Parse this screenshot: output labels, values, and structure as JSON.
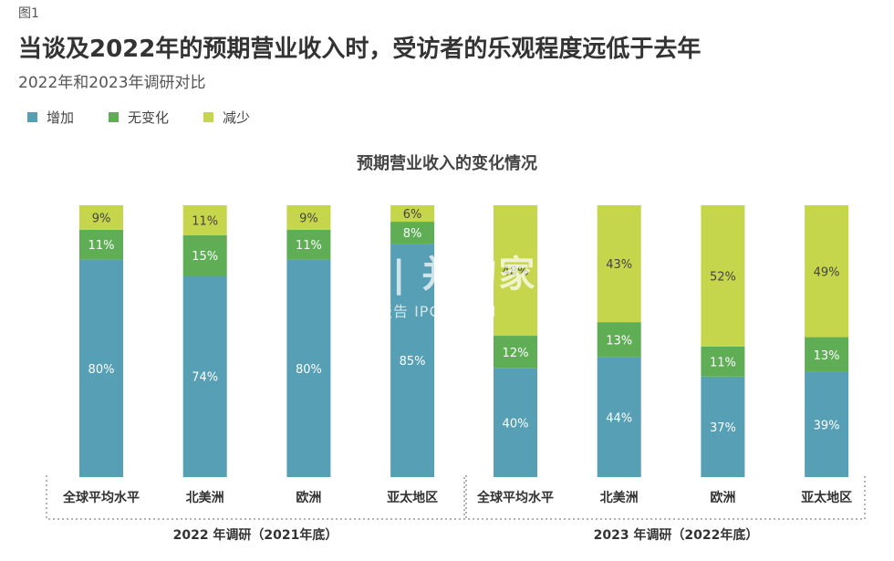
{
  "figure_label": "图1",
  "title": "当谈及2022年的预期营业收入时，受访者的乐观程度远低于去年",
  "subtitle": "2022年和2023年调研对比",
  "watermark": {
    "brand": "|||| 并购家",
    "sub": "行业报告 IPOIPO.CN"
  },
  "colors": {
    "increase": "#569fb5",
    "no_change": "#5fae56",
    "decrease": "#c5d64c"
  },
  "chart_data": {
    "type": "bar",
    "stacked": true,
    "percent": true,
    "title": "预期营业收入的变化情况",
    "ylim": [
      0,
      100
    ],
    "grid": false,
    "legend_position": "top-left",
    "legend": [
      "增加",
      "无变化",
      "减少"
    ],
    "groups": [
      {
        "label": "2022 年调研（2021年底）",
        "categories": [
          "全球平均水平",
          "北美洲",
          "欧洲",
          "亚太地区"
        ],
        "series": [
          {
            "name": "增加",
            "values": [
              80,
              74,
              80,
              85
            ]
          },
          {
            "name": "无变化",
            "values": [
              11,
              15,
              11,
              8
            ]
          },
          {
            "name": "减少",
            "values": [
              9,
              11,
              9,
              6
            ]
          }
        ]
      },
      {
        "label": "2023 年调研（2022年底）",
        "categories": [
          "全球平均水平",
          "北美洲",
          "欧洲",
          "亚太地区"
        ],
        "series": [
          {
            "name": "增加",
            "values": [
              40,
              44,
              37,
              39
            ]
          },
          {
            "name": "无变化",
            "values": [
              12,
              13,
              11,
              13
            ]
          },
          {
            "name": "减少",
            "values": [
              48,
              43,
              52,
              49
            ]
          }
        ]
      }
    ]
  }
}
